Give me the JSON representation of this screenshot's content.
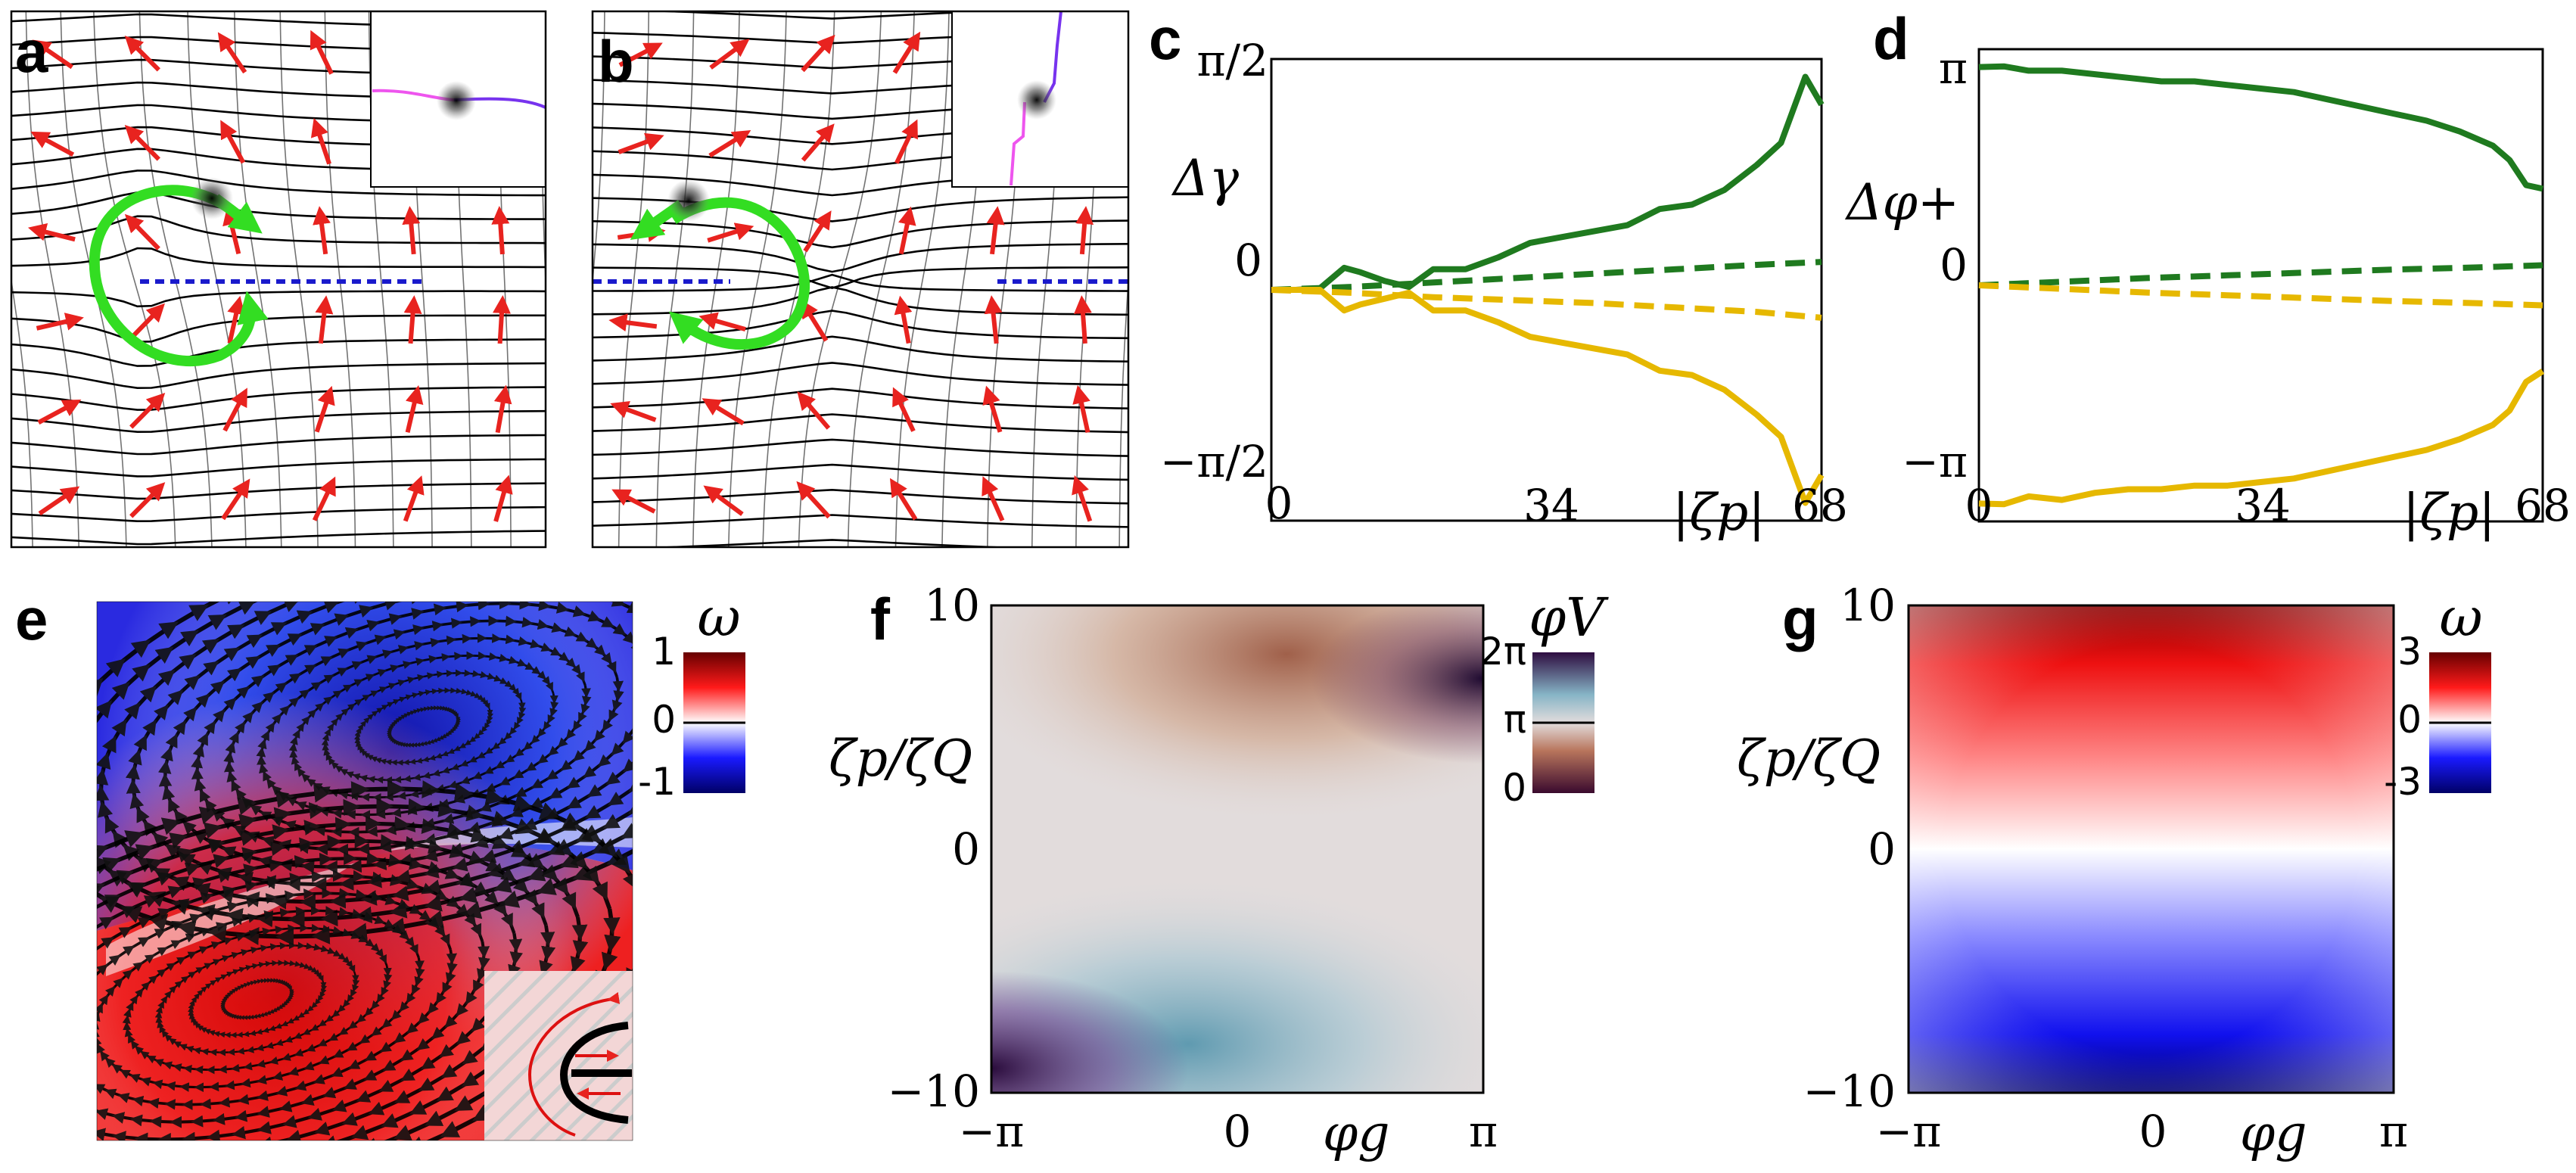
{
  "panels": {
    "a": {
      "label": "a"
    },
    "b": {
      "label": "b"
    },
    "c": {
      "label": "c",
      "ylabel": "Δγ",
      "xlabel": "|ζp|",
      "yticks": [
        "π/2",
        "0",
        "−π/2"
      ],
      "xticks": [
        "0",
        "34",
        "68"
      ]
    },
    "d": {
      "label": "d",
      "ylabel": "Δφ+",
      "xlabel": "|ζp|",
      "yticks": [
        "π",
        "0",
        "−π"
      ],
      "xticks": [
        "0",
        "34",
        "68"
      ]
    },
    "e": {
      "label": "e",
      "colorbar": {
        "title": "ω",
        "ticks": [
          "1",
          "0",
          "-1"
        ]
      }
    },
    "f": {
      "label": "f",
      "ylabel": "ζp/ζQ",
      "xlabel": "φg",
      "yticks": [
        "10",
        "0",
        "−10"
      ],
      "xticks": [
        "−π",
        "0",
        "π"
      ],
      "colorbar": {
        "title": "φV",
        "ticks": [
          "2π",
          "π",
          "0"
        ]
      }
    },
    "g": {
      "label": "g",
      "ylabel": "ζp/ζQ",
      "xlabel": "φg",
      "yticks": [
        "10",
        "0",
        "−10"
      ],
      "xticks": [
        "−π",
        "0",
        "π"
      ],
      "colorbar": {
        "title": "ω",
        "ticks": [
          "3",
          "0",
          "-3"
        ]
      }
    }
  },
  "colors": {
    "green": "#1f7a1f",
    "yellow": "#e6b800",
    "arrow_red": "#e8231f",
    "loop_green": "#33dd22",
    "blue_dash": "#1a1acc"
  },
  "chart_data": [
    {
      "panel": "c",
      "type": "line",
      "xlabel": "|ζp|",
      "ylabel": "Δγ",
      "xlim": [
        0,
        68
      ],
      "ylim": [
        -1.5708,
        1.5708
      ],
      "series": [
        {
          "name": "green-solid",
          "style": "solid",
          "color": "#1f7a1f",
          "x": [
            0,
            3,
            6,
            9,
            11,
            14,
            17,
            20,
            24,
            28,
            32,
            36,
            40,
            44,
            48,
            52,
            56,
            60,
            63,
            66,
            68
          ],
          "y": [
            0,
            0,
            0.01,
            0.15,
            0.12,
            0.06,
            0.02,
            0.14,
            0.14,
            0.22,
            0.32,
            0.36,
            0.4,
            0.44,
            0.55,
            0.58,
            0.68,
            0.85,
            1.0,
            1.45,
            1.26
          ]
        },
        {
          "name": "green-dashed",
          "style": "dashed",
          "color": "#1f7a1f",
          "x": [
            0,
            10,
            20,
            30,
            40,
            50,
            60,
            68
          ],
          "y": [
            0,
            0.02,
            0.05,
            0.08,
            0.11,
            0.14,
            0.17,
            0.19
          ]
        },
        {
          "name": "yellow-dashed",
          "style": "dashed",
          "color": "#e6b800",
          "x": [
            0,
            10,
            20,
            30,
            40,
            50,
            60,
            68
          ],
          "y": [
            0,
            -0.02,
            -0.05,
            -0.07,
            -0.09,
            -0.12,
            -0.15,
            -0.19
          ]
        },
        {
          "name": "yellow-solid",
          "style": "solid",
          "color": "#e6b800",
          "x": [
            0,
            3,
            6,
            9,
            11,
            14,
            17,
            20,
            24,
            28,
            32,
            36,
            40,
            44,
            48,
            52,
            56,
            60,
            63,
            66,
            68
          ],
          "y": [
            0,
            0,
            0,
            -0.14,
            -0.1,
            -0.06,
            -0.02,
            -0.14,
            -0.14,
            -0.22,
            -0.32,
            -0.36,
            -0.4,
            -0.44,
            -0.55,
            -0.58,
            -0.68,
            -0.85,
            -1.0,
            -1.45,
            -1.26
          ]
        }
      ]
    },
    {
      "panel": "d",
      "type": "line",
      "xlabel": "|ζp|",
      "ylabel": "Δφ+",
      "xlim": [
        0,
        68
      ],
      "ylim": [
        -3.3,
        3.3
      ],
      "series": [
        {
          "name": "green-solid",
          "style": "solid",
          "color": "#1f7a1f",
          "x": [
            0,
            3,
            6,
            10,
            14,
            18,
            22,
            26,
            30,
            34,
            38,
            42,
            46,
            50,
            54,
            58,
            62,
            64,
            66,
            68
          ],
          "y": [
            3.05,
            3.06,
            3.0,
            3.0,
            2.95,
            2.9,
            2.85,
            2.85,
            2.8,
            2.75,
            2.7,
            2.6,
            2.5,
            2.4,
            2.3,
            2.15,
            1.95,
            1.75,
            1.4,
            1.35
          ]
        },
        {
          "name": "green-dashed",
          "style": "dashed",
          "color": "#1f7a1f",
          "x": [
            0,
            10,
            20,
            30,
            40,
            50,
            60,
            68
          ],
          "y": [
            0,
            0.05,
            0.1,
            0.14,
            0.18,
            0.22,
            0.25,
            0.28
          ]
        },
        {
          "name": "yellow-dashed",
          "style": "dashed",
          "color": "#e6b800",
          "x": [
            0,
            10,
            20,
            30,
            40,
            50,
            60,
            68
          ],
          "y": [
            0,
            -0.05,
            -0.1,
            -0.14,
            -0.18,
            -0.22,
            -0.25,
            -0.28
          ]
        },
        {
          "name": "yellow-solid",
          "style": "solid",
          "color": "#e6b800",
          "x": [
            0,
            3,
            6,
            10,
            14,
            18,
            22,
            26,
            30,
            34,
            38,
            42,
            46,
            50,
            54,
            58,
            62,
            64,
            66,
            68
          ],
          "y": [
            -3.05,
            -3.06,
            -2.95,
            -3.0,
            -2.9,
            -2.85,
            -2.85,
            -2.8,
            -2.8,
            -2.75,
            -2.7,
            -2.6,
            -2.5,
            -2.4,
            -2.3,
            -2.15,
            -1.95,
            -1.75,
            -1.35,
            -1.2
          ]
        }
      ]
    },
    {
      "panel": "f",
      "type": "heatmap",
      "xlabel": "φg",
      "ylabel": "ζp/ζQ",
      "xlim": [
        -3.1416,
        3.1416
      ],
      "ylim": [
        -10,
        10
      ],
      "colorbar_range": [
        0,
        6.2832
      ],
      "colormap": [
        [
          "#3a0a2e",
          0
        ],
        [
          "#b8755c",
          0.3
        ],
        [
          "#e2dcdc",
          0.5
        ],
        [
          "#86b4c6",
          0.7
        ],
        [
          "#2e0d40",
          1
        ]
      ]
    },
    {
      "panel": "g",
      "type": "heatmap",
      "xlabel": "φg",
      "ylabel": "ζp/ζQ",
      "xlim": [
        -3.1416,
        3.1416
      ],
      "ylim": [
        -10,
        10
      ],
      "colorbar_range": [
        -3,
        3
      ],
      "colormap": [
        [
          "#000066",
          0
        ],
        [
          "#1a1aff",
          0.25
        ],
        [
          "#ffffff",
          0.5
        ],
        [
          "#ff1a1a",
          0.75
        ],
        [
          "#660000",
          1
        ]
      ]
    }
  ]
}
